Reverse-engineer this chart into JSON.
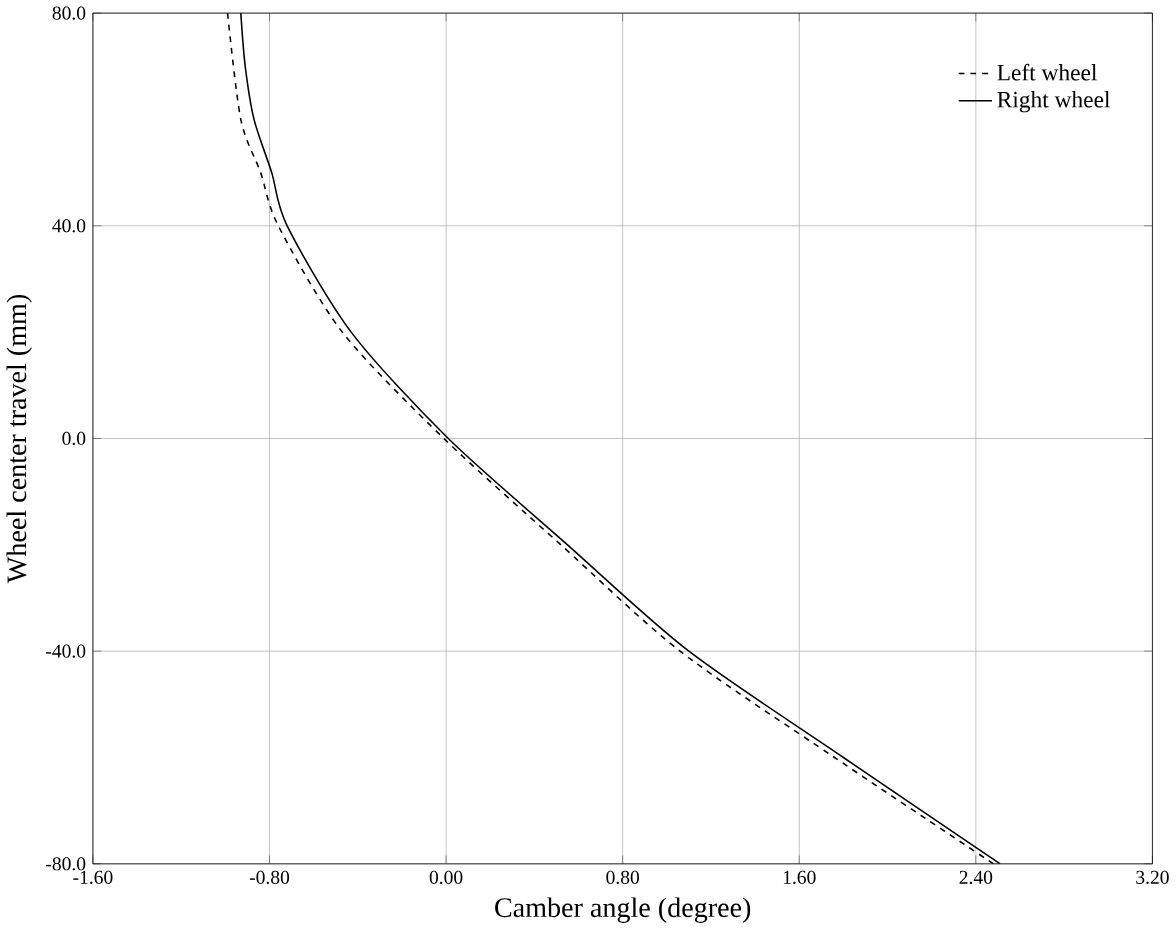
{
  "chart_data": {
    "type": "line",
    "xlabel": "Camber angle (degree)",
    "ylabel": "Wheel center travel (mm)",
    "xlim": [
      -1.6,
      3.2
    ],
    "ylim": [
      -80,
      80
    ],
    "xticks": [
      {
        "value": -1.6,
        "label": "-1.60"
      },
      {
        "value": -0.8,
        "label": "-0.80"
      },
      {
        "value": 0,
        "label": "0.00"
      },
      {
        "value": 0.8,
        "label": "0.80"
      },
      {
        "value": 1.6,
        "label": "1.60"
      },
      {
        "value": 2.4,
        "label": "2.40"
      },
      {
        "value": 3.2,
        "label": "3.20"
      }
    ],
    "yticks": [
      {
        "value": -80,
        "label": "-80.0"
      },
      {
        "value": -40,
        "label": "-40.0"
      },
      {
        "value": 0,
        "label": "0.0"
      },
      {
        "value": 40,
        "label": "40.0"
      },
      {
        "value": 80,
        "label": "80.0"
      }
    ],
    "grid": true,
    "legend": "top right",
    "series": [
      {
        "name": "Left wheel",
        "color": "#000000",
        "line_style": "dashed",
        "x": [
          -0.99,
          -0.93,
          -0.84,
          -0.76,
          -0.47,
          -0.01,
          0.52,
          1.06,
          1.76,
          2.48
        ],
        "values": [
          80,
          60,
          50,
          40,
          20,
          0,
          -20,
          -40,
          -60,
          -80
        ]
      },
      {
        "name": "Right wheel",
        "color": "#000000",
        "line_style": "solid",
        "x": [
          -0.93,
          -0.91,
          -0.87,
          -0.79,
          -0.72,
          -0.43,
          0.01,
          0.55,
          1.1,
          1.8,
          2.51
        ],
        "values": [
          80,
          70,
          60,
          50,
          40,
          20,
          0,
          -20,
          -40,
          -60,
          -80
        ]
      }
    ]
  }
}
